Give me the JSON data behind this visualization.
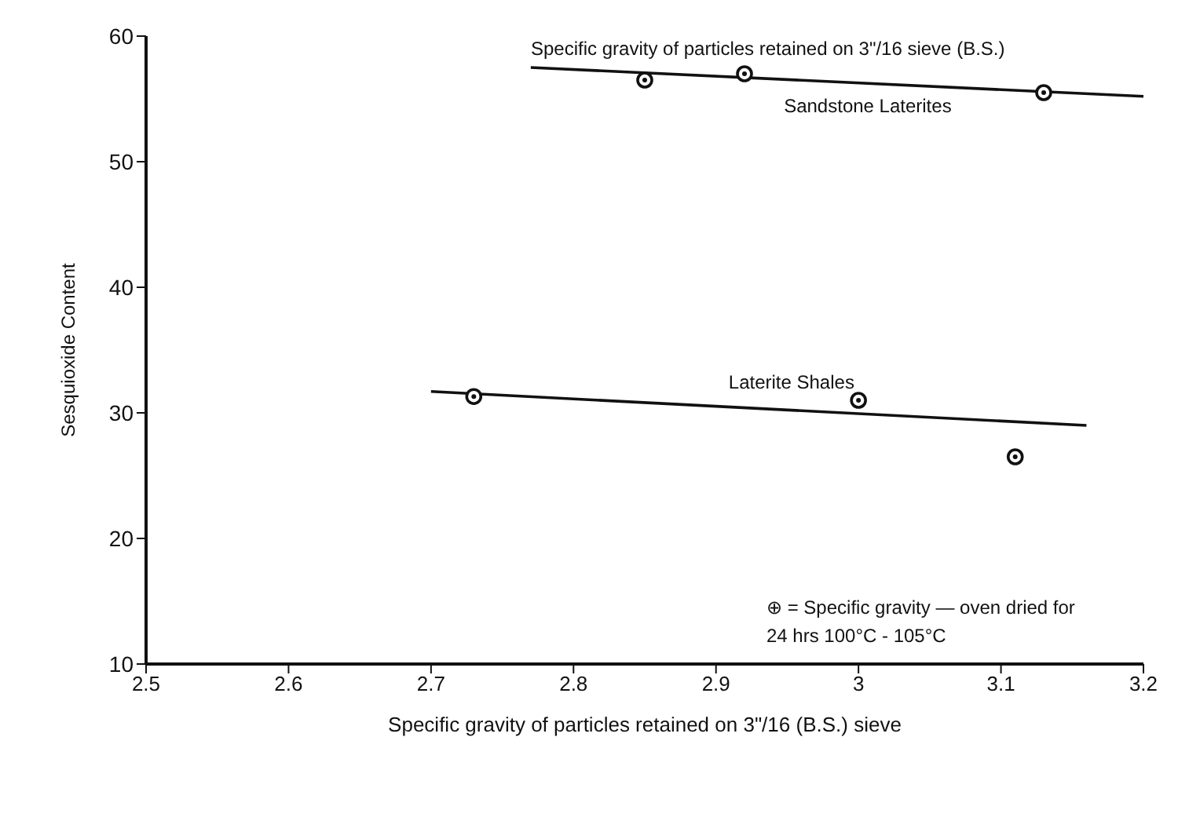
{
  "chart_data": {
    "type": "scatter",
    "xlabel": "Specific gravity of particles retained on 3\"/16 (B.S.) sieve",
    "ylabel": "Sesquioxide Content",
    "xlim": [
      2.5,
      3.2
    ],
    "xticks": [
      2.5,
      2.6,
      2.7,
      2.8,
      2.9,
      3.0,
      3.1,
      3.2
    ],
    "ylim": [
      10,
      60
    ],
    "yticks": [
      10,
      20,
      30,
      40,
      50,
      60
    ],
    "grid": false,
    "legend": false,
    "marker": "circle",
    "series": [
      {
        "name": "Sandstone Laterites",
        "type": "line",
        "color": "#111111",
        "x": [
          2.77,
          3.2
        ],
        "values": [
          57.5,
          55.2
        ],
        "marker": "none"
      },
      {
        "name": "Laterite Shales",
        "type": "line",
        "color": "#111111",
        "x": [
          2.7,
          3.16
        ],
        "values": [
          31.7,
          29
        ],
        "marker": "none"
      },
      {
        "color": "#111111",
        "x": [
          2.85,
          2.92,
          3.13
        ],
        "values": [
          56.5,
          57,
          55.5
        ]
      },
      {
        "color": "#111111",
        "x": [
          2.73,
          3.0,
          3.11
        ],
        "values": [
          31.3,
          31,
          26.5
        ]
      }
    ],
    "annotations": [
      "Specific gravity of particles retained on 3\"/16 sieve (B.S.)",
      "⊕ = Specific gravity — oven dried for 24 hrs 100°C - 105°C"
    ]
  }
}
